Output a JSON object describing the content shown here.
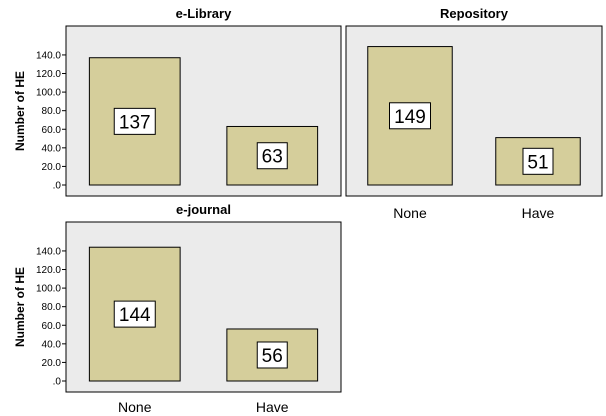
{
  "chart_data": [
    {
      "type": "bar",
      "title": "e-Library",
      "categories": [
        "None",
        "Have"
      ],
      "values": [
        137,
        63
      ],
      "data_labels": [
        "137",
        "63"
      ],
      "ylabel": "Number of HE",
      "yticks": [
        ".0",
        "20.0",
        "40.0",
        "60.0",
        "80.0",
        "100.0",
        "120.0",
        "140.0"
      ],
      "ylim": [
        0,
        155
      ],
      "show_x_labels": false
    },
    {
      "type": "bar",
      "title": "Repository",
      "categories": [
        "None",
        "Have"
      ],
      "values": [
        149,
        51
      ],
      "data_labels": [
        "149",
        "51"
      ],
      "ylabel": "",
      "yticks": [],
      "ylim": [
        0,
        155
      ],
      "show_x_labels": true
    },
    {
      "type": "bar",
      "title": "e-journal",
      "categories": [
        "None",
        "Have"
      ],
      "values": [
        144,
        56
      ],
      "data_labels": [
        "144",
        "56"
      ],
      "ylabel": "Number of HE",
      "yticks": [
        ".0",
        "20.0",
        "40.0",
        "60.0",
        "80.0",
        "100.0",
        "120.0",
        "140.0"
      ],
      "ylim": [
        0,
        155
      ],
      "show_x_labels": true
    }
  ],
  "colors": {
    "plot_background": "#ebebeb",
    "bar_fill": "#d5ce9b",
    "bar_stroke": "#000000",
    "label_box": "#ffffff"
  }
}
